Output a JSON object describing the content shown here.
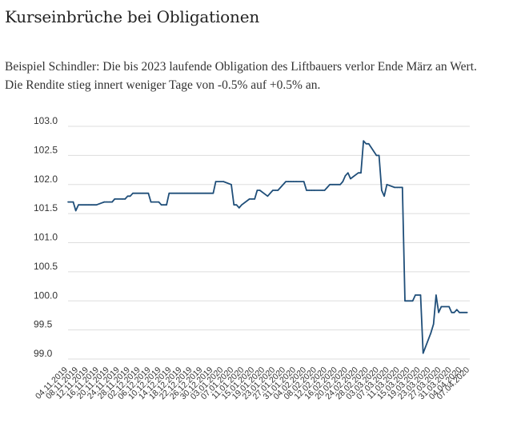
{
  "title": "Kurseinbrüche bei Obligationen",
  "subtitle": "Beispiel Schindler: Die bis 2023 laufende Obligation des Liftbauers  verlor Ende März an Wert. Die Rendite stieg innert weniger Tage von -0.5% auf  +0.5% an.",
  "chart_data": {
    "type": "line",
    "title": "Kurseinbrüche bei Obligationen",
    "ylim": [
      99.0,
      103.0
    ],
    "y_ticks": [
      "103.0",
      "102.5",
      "102.0",
      "101.5",
      "101.0",
      "100.5",
      "100.0",
      "99.5",
      "99.0"
    ],
    "grid": true,
    "x_tick_labels": [
      "04.11.2019",
      "08.11.2019",
      "12.11.2019",
      "16.11.2019",
      "20.11.2019",
      "24.11.2019",
      "28.11.2019",
      "02.12.2019",
      "06.12.2019",
      "10.12.2019",
      "14.12.2019",
      "18.12.2019",
      "22.12.2019",
      "26.12.2019",
      "30.12.2019",
      "03.01.2020",
      "07.01.2020",
      "11.01.2020",
      "15.01.2020",
      "19.01.2020",
      "23.01.2020",
      "27.01.2020",
      "31.01.2020",
      "04.02.2020",
      "08.02.2020",
      "12.02.2020",
      "16.02.2020",
      "20.02.2020",
      "24.02.2020",
      "28.02.2020",
      "03.03.2020",
      "07.03.2020",
      "11.03.2020",
      "15.03.2020",
      "19.03.2020",
      "23.03.2020",
      "27.03.2020",
      "31.03.2020",
      "04.04.2020",
      "07.04.2020"
    ],
    "line_color": "#1f4e79",
    "series": [
      {
        "points": [
          [
            "04.11.2019",
            101.7
          ],
          [
            "05.11.2019",
            101.7
          ],
          [
            "06.11.2019",
            101.7
          ],
          [
            "07.11.2019",
            101.55
          ],
          [
            "08.11.2019",
            101.65
          ],
          [
            "11.11.2019",
            101.65
          ],
          [
            "12.11.2019",
            101.65
          ],
          [
            "13.11.2019",
            101.65
          ],
          [
            "14.11.2019",
            101.65
          ],
          [
            "15.11.2019",
            101.65
          ],
          [
            "18.11.2019",
            101.7
          ],
          [
            "19.11.2019",
            101.7
          ],
          [
            "20.11.2019",
            101.7
          ],
          [
            "21.11.2019",
            101.7
          ],
          [
            "22.11.2019",
            101.75
          ],
          [
            "25.11.2019",
            101.75
          ],
          [
            "26.11.2019",
            101.75
          ],
          [
            "27.11.2019",
            101.8
          ],
          [
            "28.11.2019",
            101.8
          ],
          [
            "29.11.2019",
            101.85
          ],
          [
            "02.12.2019",
            101.85
          ],
          [
            "03.12.2019",
            101.85
          ],
          [
            "04.12.2019",
            101.85
          ],
          [
            "05.12.2019",
            101.85
          ],
          [
            "06.12.2019",
            101.7
          ],
          [
            "09.12.2019",
            101.7
          ],
          [
            "10.12.2019",
            101.65
          ],
          [
            "11.12.2019",
            101.65
          ],
          [
            "12.12.2019",
            101.65
          ],
          [
            "13.12.2019",
            101.85
          ],
          [
            "16.12.2019",
            101.85
          ],
          [
            "17.12.2019",
            101.85
          ],
          [
            "18.12.2019",
            101.85
          ],
          [
            "19.12.2019",
            101.85
          ],
          [
            "20.12.2019",
            101.85
          ],
          [
            "23.12.2019",
            101.85
          ],
          [
            "24.12.2019",
            101.85
          ],
          [
            "27.12.2019",
            101.85
          ],
          [
            "30.12.2019",
            101.85
          ],
          [
            "31.12.2019",
            102.05
          ],
          [
            "03.01.2020",
            102.05
          ],
          [
            "06.01.2020",
            102.0
          ],
          [
            "07.01.2020",
            101.65
          ],
          [
            "08.01.2020",
            101.65
          ],
          [
            "09.01.2020",
            101.6
          ],
          [
            "10.01.2020",
            101.65
          ],
          [
            "13.01.2020",
            101.75
          ],
          [
            "14.01.2020",
            101.75
          ],
          [
            "15.01.2020",
            101.75
          ],
          [
            "16.01.2020",
            101.9
          ],
          [
            "17.01.2020",
            101.9
          ],
          [
            "20.01.2020",
            101.8
          ],
          [
            "21.01.2020",
            101.85
          ],
          [
            "22.01.2020",
            101.9
          ],
          [
            "23.01.2020",
            101.9
          ],
          [
            "24.01.2020",
            101.9
          ],
          [
            "27.01.2020",
            102.05
          ],
          [
            "28.01.2020",
            102.05
          ],
          [
            "29.01.2020",
            102.05
          ],
          [
            "30.01.2020",
            102.05
          ],
          [
            "31.01.2020",
            102.05
          ],
          [
            "03.02.2020",
            102.05
          ],
          [
            "04.02.2020",
            101.9
          ],
          [
            "05.02.2020",
            101.9
          ],
          [
            "06.02.2020",
            101.9
          ],
          [
            "07.02.2020",
            101.9
          ],
          [
            "10.02.2020",
            101.9
          ],
          [
            "11.02.2020",
            101.9
          ],
          [
            "12.02.2020",
            101.95
          ],
          [
            "13.02.2020",
            102.0
          ],
          [
            "14.02.2020",
            102.0
          ],
          [
            "17.02.2020",
            102.0
          ],
          [
            "18.02.2020",
            102.05
          ],
          [
            "19.02.2020",
            102.15
          ],
          [
            "20.02.2020",
            102.2
          ],
          [
            "21.02.2020",
            102.1
          ],
          [
            "24.02.2020",
            102.2
          ],
          [
            "25.02.2020",
            102.2
          ],
          [
            "26.02.2020",
            102.75
          ],
          [
            "27.02.2020",
            102.7
          ],
          [
            "28.02.2020",
            102.7
          ],
          [
            "02.03.2020",
            102.5
          ],
          [
            "03.03.2020",
            102.5
          ],
          [
            "04.03.2020",
            101.9
          ],
          [
            "05.03.2020",
            101.8
          ],
          [
            "06.03.2020",
            102.0
          ],
          [
            "09.03.2020",
            101.95
          ],
          [
            "10.03.2020",
            101.95
          ],
          [
            "11.03.2020",
            101.95
          ],
          [
            "12.03.2020",
            101.95
          ],
          [
            "13.03.2020",
            100.0
          ],
          [
            "16.03.2020",
            100.0
          ],
          [
            "17.03.2020",
            100.1
          ],
          [
            "18.03.2020",
            100.1
          ],
          [
            "19.03.2020",
            100.1
          ],
          [
            "20.03.2020",
            99.1
          ],
          [
            "23.03.2020",
            99.45
          ],
          [
            "24.03.2020",
            99.6
          ],
          [
            "25.03.2020",
            100.1
          ],
          [
            "26.03.2020",
            99.8
          ],
          [
            "27.03.2020",
            99.9
          ],
          [
            "30.03.2020",
            99.9
          ],
          [
            "31.03.2020",
            99.8
          ],
          [
            "01.04.2020",
            99.8
          ],
          [
            "02.04.2020",
            99.85
          ],
          [
            "03.04.2020",
            99.8
          ],
          [
            "06.04.2020",
            99.8
          ]
        ]
      }
    ]
  }
}
